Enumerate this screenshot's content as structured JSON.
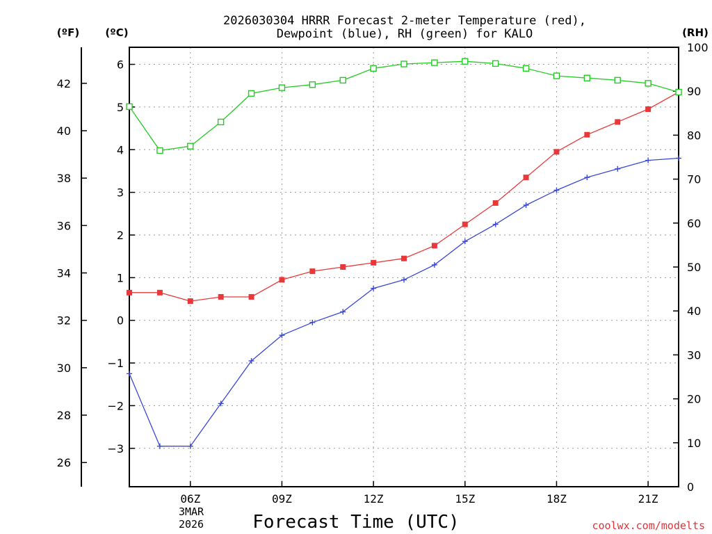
{
  "chart_data": {
    "type": "line",
    "title_line1": "2026030304 HRRR Forecast 2-meter Temperature (red),",
    "title_line2": "Dewpoint (blue), RH (green) for KALO",
    "xlabel": "Forecast Time (UTC)",
    "credit": "coolwx.com/modelts",
    "unit_f": "(ºF)",
    "unit_c": "(ºC)",
    "unit_rh": "(RH)",
    "x_hours": [
      4,
      5,
      6,
      7,
      8,
      9,
      10,
      11,
      12,
      13,
      14,
      15,
      16,
      17,
      18,
      19,
      20,
      21,
      22
    ],
    "xlim": [
      4,
      22
    ],
    "x_ticks": [
      {
        "hour": 6,
        "label": "06Z"
      },
      {
        "hour": 9,
        "label": "09Z"
      },
      {
        "hour": 12,
        "label": "12Z"
      },
      {
        "hour": 15,
        "label": "15Z"
      },
      {
        "hour": 18,
        "label": "18Z"
      },
      {
        "hour": 21,
        "label": "21Z"
      }
    ],
    "date_label_1": "3MAR",
    "date_label_2": "2026",
    "c_axis": {
      "range": [
        -3.9,
        6.4
      ],
      "ticks": [
        -3,
        -2,
        -1,
        0,
        1,
        2,
        3,
        4,
        5,
        6
      ]
    },
    "f_axis": {
      "ticks": [
        26,
        28,
        30,
        32,
        34,
        36,
        38,
        40,
        42
      ]
    },
    "rh_axis": {
      "range": [
        0,
        100
      ],
      "ticks": [
        0,
        10,
        20,
        30,
        40,
        50,
        60,
        70,
        80,
        90,
        100
      ]
    },
    "series": [
      {
        "name": "Temperature",
        "unit": "C",
        "color": "#e8383a",
        "marker": "filled-square",
        "values": [
          0.65,
          0.65,
          0.45,
          0.55,
          0.55,
          0.95,
          1.15,
          1.25,
          1.35,
          1.45,
          1.75,
          2.25,
          2.75,
          3.35,
          3.95,
          4.35,
          4.65,
          4.95,
          5.35
        ]
      },
      {
        "name": "Dewpoint",
        "unit": "C",
        "color": "#3a48d8",
        "marker": "plus",
        "values": [
          -1.25,
          -2.95,
          -2.95,
          -1.95,
          -0.95,
          -0.35,
          -0.05,
          0.2,
          0.75,
          0.95,
          1.3,
          1.85,
          2.25,
          2.7,
          3.05,
          3.35,
          3.55,
          3.75,
          3.8
        ]
      },
      {
        "name": "RH",
        "unit": "%",
        "color": "#22cc22",
        "marker": "open-square",
        "values": [
          86.5,
          76.5,
          77.5,
          83,
          89.5,
          90.8,
          91.5,
          92.5,
          95.2,
          96.2,
          96.5,
          96.8,
          96.3,
          95.2,
          93.5,
          93,
          92.5,
          91.8,
          89.8
        ]
      }
    ]
  }
}
